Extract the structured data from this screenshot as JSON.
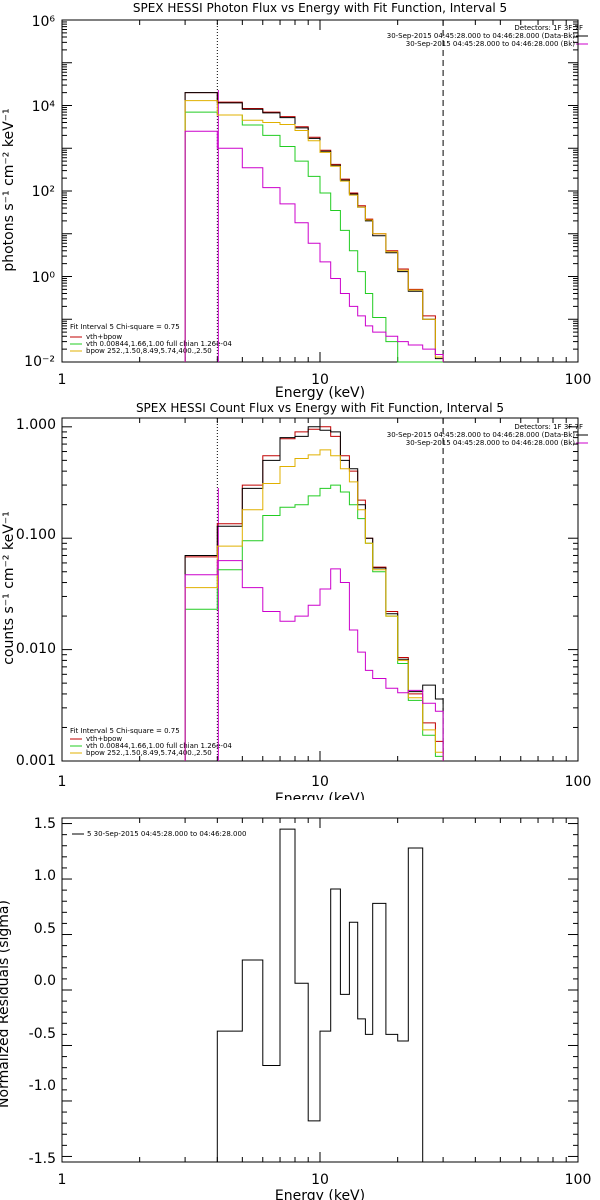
{
  "colors": {
    "total": "#c00000",
    "thermal": "#22cc22",
    "powerlaw": "#e0b000",
    "data": "#000000",
    "background": "#cc00cc"
  },
  "chart_data": [
    {
      "type": "line",
      "title": "SPEX HESSI Photon Flux vs Energy with Fit Function, Interval 5",
      "xlabel": "Energy (keV)",
      "ylabel": "photons s⁻¹ cm⁻² keV⁻¹",
      "xscale": "log",
      "yscale": "log",
      "xlim": [
        1,
        100
      ],
      "ylim": [
        0.01,
        1000000
      ],
      "xtick_labels": [
        "1",
        "10",
        "100"
      ],
      "ytick_labels": [
        "10⁶",
        "10⁴",
        "10²",
        "10⁰",
        "10⁻²"
      ],
      "edges": [
        3.0,
        4.0,
        5.0,
        6.0,
        7.0,
        8.0,
        9.0,
        10.0,
        11.0,
        12.0,
        13.0,
        14.0,
        15.0,
        16.0,
        18.0,
        20.0,
        22.0,
        25.0,
        28.0,
        30.0
      ],
      "markers": {
        "dotted_x": 4.0,
        "dashed_x": 30.0,
        "magenta_x": 4.0
      },
      "legend_top_right": [
        "Detectors: 1F 3F 7F",
        "30-Sep-2015 04:45:28.000 to 04:46:28.000 (Data-Bk)",
        "30-Sep-2015 04:45:28.000 to 04:46:28.000 (Bk)"
      ],
      "legend_bottom_left": [
        "Fit Interval 5   Chi-square = 0.75",
        "vth+bpow",
        "vth 0.00844,1.66,1.00  full chian 1.26e-04",
        "bpow 252.,1.50,8.49,5.74,400.,2.50"
      ],
      "series": [
        {
          "name": "vth+bpow",
          "color": "total",
          "values": [
            20000,
            12000,
            8500,
            7000,
            5500,
            3200,
            1800,
            900,
            420,
            190,
            90,
            45,
            22,
            10,
            4,
            1.5,
            0.5,
            0.12,
            0.015
          ]
        },
        {
          "name": "data",
          "color": "data",
          "values": [
            20000,
            11500,
            8200,
            6700,
            5200,
            3000,
            1700,
            850,
            400,
            180,
            85,
            42,
            20,
            9,
            3.6,
            1.3,
            0.45,
            0.1,
            0.012
          ]
        },
        {
          "name": "vth",
          "color": "thermal",
          "values": [
            7000,
            6000,
            3500,
            2000,
            1100,
            500,
            220,
            90,
            35,
            12,
            4,
            1.3,
            0.4,
            0.11,
            0.03,
            0.01,
            0.01,
            0.01,
            0.01
          ]
        },
        {
          "name": "bpow",
          "color": "powerlaw",
          "values": [
            13000,
            6000,
            4500,
            4000,
            3600,
            2600,
            1500,
            800,
            380,
            170,
            80,
            42,
            21,
            10,
            3.8,
            1.4,
            0.48,
            0.1,
            0.013
          ]
        },
        {
          "name": "Bk",
          "color": "background",
          "values": [
            2500,
            1000,
            350,
            120,
            50,
            18,
            6,
            2.2,
            0.9,
            0.4,
            0.2,
            0.12,
            0.07,
            0.05,
            0.04,
            0.03,
            0.025,
            0.02,
            0.015
          ]
        }
      ]
    },
    {
      "type": "line",
      "title": "SPEX HESSI Count Flux vs Energy with Fit Function, Interval 5",
      "xlabel": "Energy (keV)",
      "ylabel": "counts s⁻¹ cm⁻² keV⁻¹",
      "xscale": "log",
      "yscale": "log",
      "xlim": [
        1,
        100
      ],
      "ylim": [
        0.001,
        1.2
      ],
      "xtick_labels": [
        "1",
        "10",
        "100"
      ],
      "ytick_labels": [
        "1.000",
        "0.100",
        "0.010",
        "0.001"
      ],
      "edges": [
        3.0,
        4.0,
        5.0,
        6.0,
        7.0,
        8.0,
        9.0,
        10.0,
        11.0,
        12.0,
        13.0,
        14.0,
        15.0,
        16.0,
        18.0,
        20.0,
        22.0,
        25.0,
        28.0,
        30.0
      ],
      "markers": {
        "dotted_x": 4.0,
        "dashed_x": 30.0,
        "magenta_x": 4.0
      },
      "legend_top_right": [
        "Detectors: 1F 3F 7F",
        "30-Sep-2015 04:45:28.000 to 04:46:28.000 (Data-Bk)",
        "30-Sep-2015 04:45:28.000 to 04:46:28.000 (Bk)"
      ],
      "legend_bottom_left": [
        "Fit Interval 5   Chi-square = 0.75",
        "vth+bpow",
        "vth 0.00844,1.66,1.00  full chian 1.26e-04",
        "bpow 252.,1.50,8.49,5.74,400.,2.50"
      ],
      "series": [
        {
          "name": "vth+bpow",
          "color": "total",
          "values": [
            0.068,
            0.135,
            0.3,
            0.55,
            0.78,
            0.9,
            0.95,
            1.0,
            0.82,
            0.55,
            0.4,
            0.22,
            0.1,
            0.055,
            0.022,
            0.0085,
            0.004,
            0.0022,
            0.0015
          ]
        },
        {
          "name": "data",
          "color": "data",
          "values": [
            0.07,
            0.128,
            0.28,
            0.5,
            0.8,
            0.82,
            1.0,
            0.93,
            0.9,
            0.5,
            0.42,
            0.2,
            0.1,
            0.054,
            0.021,
            0.0082,
            0.0042,
            0.0048,
            0.0036
          ]
        },
        {
          "name": "vth",
          "color": "thermal",
          "values": [
            0.023,
            0.052,
            0.095,
            0.16,
            0.19,
            0.2,
            0.24,
            0.28,
            0.3,
            0.26,
            0.2,
            0.15,
            0.09,
            0.05,
            0.02,
            0.0075,
            0.0035,
            0.0017,
            0.0011
          ]
        },
        {
          "name": "bpow",
          "color": "powerlaw",
          "values": [
            0.036,
            0.085,
            0.18,
            0.31,
            0.44,
            0.52,
            0.56,
            0.62,
            0.55,
            0.42,
            0.32,
            0.18,
            0.09,
            0.052,
            0.02,
            0.008,
            0.0037,
            0.0019,
            0.0012
          ]
        },
        {
          "name": "Bk",
          "color": "background",
          "values": [
            0.047,
            0.063,
            0.036,
            0.022,
            0.018,
            0.02,
            0.025,
            0.035,
            0.053,
            0.04,
            0.015,
            0.0095,
            0.0065,
            0.0055,
            0.0045,
            0.0041,
            0.0043,
            0.0033,
            0.0028
          ]
        }
      ]
    },
    {
      "type": "line",
      "title": "",
      "xlabel": "Energy (keV)",
      "ylabel": "Normalized Residuals (sigma)",
      "xscale": "log",
      "yscale": "linear",
      "xlim": [
        1,
        100
      ],
      "ylim": [
        -1.55,
        1.55
      ],
      "xtick_labels": [
        "1",
        "10",
        "100"
      ],
      "ytick_labels": [
        "1.5",
        "1.0",
        "0.5",
        "0.0",
        "-0.5",
        "-1.0",
        "-1.5"
      ],
      "ytick_values": [
        1.5,
        1.0,
        0.5,
        0.0,
        -0.5,
        -1.0,
        -1.5
      ],
      "edges": [
        4.0,
        5.0,
        6.0,
        7.0,
        8.0,
        9.0,
        10.0,
        11.0,
        12.0,
        13.0,
        14.0,
        15.0,
        16.0,
        18.0,
        20.0,
        22.0,
        25.0,
        28.0,
        30.0
      ],
      "legend_top_left": "5  30-Sep-2015 04:45:28.000 to 04:46:28.000",
      "series": [
        {
          "name": "5  30-Sep-2015 04:45:28.000 to 04:46:28.000",
          "color": "data",
          "values": [
            -0.37,
            0.27,
            -0.68,
            1.45,
            0.06,
            -1.18,
            -0.37,
            0.91,
            -0.04,
            0.61,
            -0.26,
            -0.4,
            0.78,
            -0.4,
            -0.46,
            1.28,
            -1.55,
            -1.55
          ]
        }
      ]
    }
  ]
}
